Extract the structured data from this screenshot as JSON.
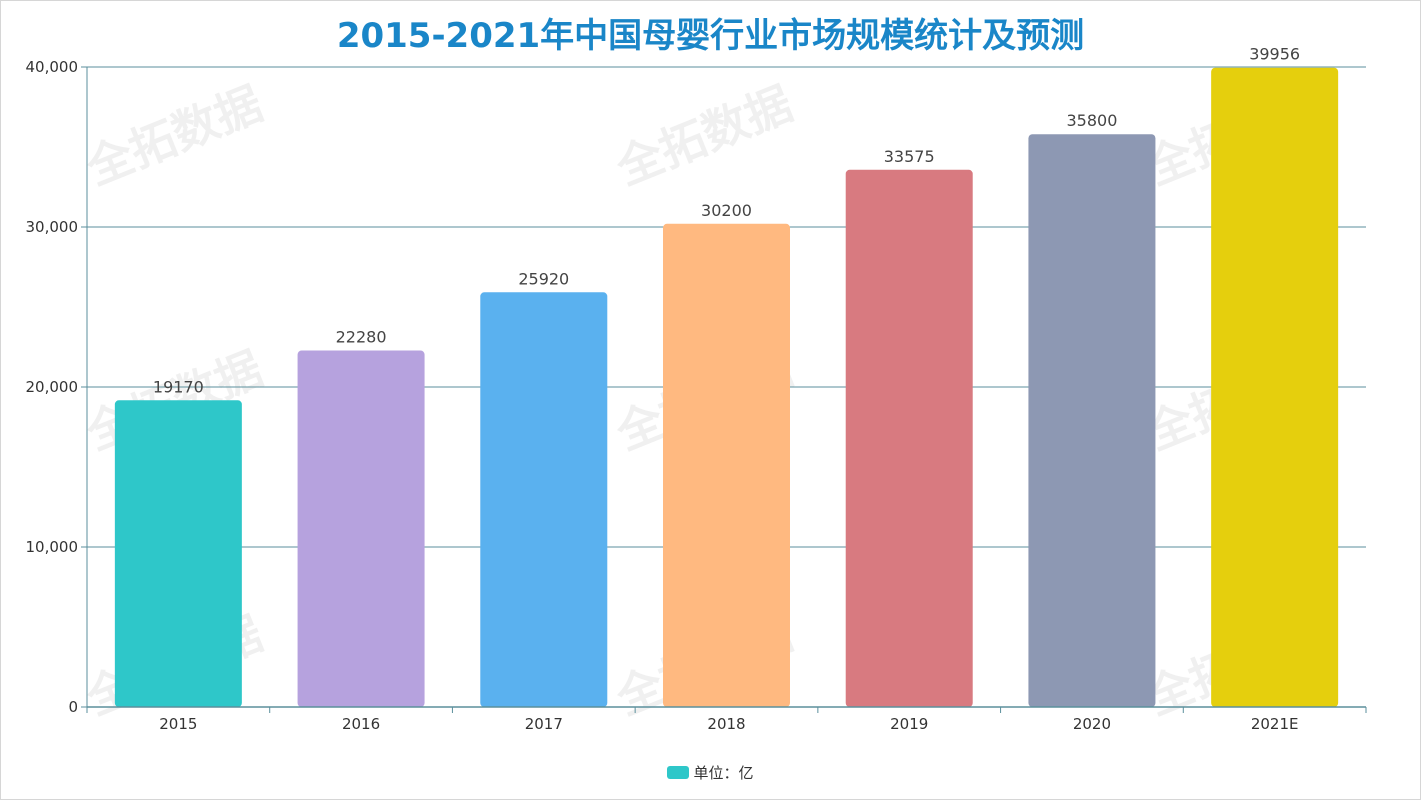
{
  "title": "2015-2021年中国母婴行业市场规模统计及预测",
  "watermark": "全拓数据",
  "legend": {
    "label": "单位：亿",
    "color": "#2ec7c9"
  },
  "chart_data": {
    "type": "bar",
    "title": "2015-2021年中国母婴行业市场规模统计及预测",
    "xlabel": "",
    "ylabel": "",
    "categories": [
      "2015",
      "2016",
      "2017",
      "2018",
      "2019",
      "2020",
      "2021E"
    ],
    "values": [
      19170,
      22280,
      25920,
      30200,
      33575,
      35800,
      39956
    ],
    "data_labels": [
      "19170",
      "22280",
      "25920",
      "30200",
      "33575",
      "35800",
      "39956"
    ],
    "colors": [
      "#2ec7c9",
      "#b6a2de",
      "#5ab1ef",
      "#ffb980",
      "#d87a80",
      "#8d98b3",
      "#e5cf0d"
    ],
    "ylim": [
      0,
      40000
    ],
    "yticks": [
      0,
      10000,
      20000,
      30000,
      40000
    ],
    "ytick_labels": [
      "0",
      "10,000",
      "20,000",
      "30,000",
      "40,000"
    ],
    "grid": true,
    "legend_position": "bottom-center",
    "series": [
      {
        "name": "单位：亿",
        "values": [
          19170,
          22280,
          25920,
          30200,
          33575,
          35800,
          39956
        ]
      }
    ]
  }
}
